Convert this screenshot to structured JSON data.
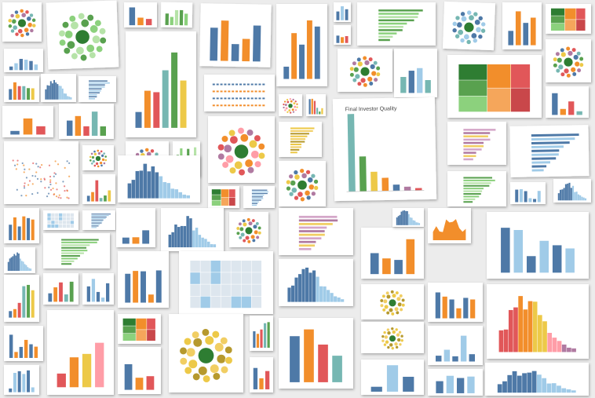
{
  "header": {
    "title": "Final Investor Quality"
  }
}
